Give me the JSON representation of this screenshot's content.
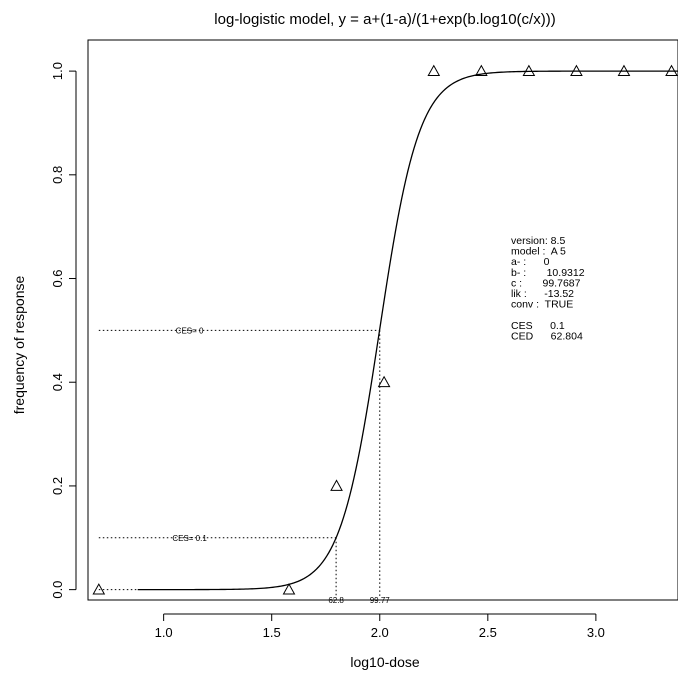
{
  "chart_data": {
    "type": "line",
    "title": "log-logistic model, y = a+(1-a)/(1+exp(b.log10(c/x)))",
    "xlabel": "log10-dose",
    "ylabel": "frequency of response",
    "xlim": [
      0.65,
      3.38
    ],
    "ylim": [
      -0.02,
      1.06
    ],
    "x_ticks": [
      1.0,
      1.5,
      2.0,
      2.5,
      3.0
    ],
    "x_tick_labels": [
      "1.0",
      "1.5",
      "2.0",
      "2.5",
      "3.0"
    ],
    "y_ticks": [
      0.0,
      0.2,
      0.4,
      0.6,
      0.8,
      1.0
    ],
    "y_tick_labels": [
      "0.0",
      "0.2",
      "0.4",
      "0.6",
      "0.8",
      "1.0"
    ],
    "grid": false,
    "model": {
      "a": 0,
      "b": 10.9312,
      "c": 99.7687
    },
    "observed": [
      {
        "x": 0.7,
        "y": 0.0
      },
      {
        "x": 1.58,
        "y": 0.0
      },
      {
        "x": 1.8,
        "y": 0.2
      },
      {
        "x": 2.02,
        "y": 0.4
      },
      {
        "x": 2.25,
        "y": 1.0
      },
      {
        "x": 2.47,
        "y": 1.0
      },
      {
        "x": 2.69,
        "y": 1.0
      },
      {
        "x": 2.91,
        "y": 1.0
      },
      {
        "x": 3.13,
        "y": 1.0
      },
      {
        "x": 3.35,
        "y": 1.0
      }
    ],
    "reference_lines": [
      {
        "y": 0.5,
        "x": 2.0,
        "label": "CES= 0",
        "x_label": "99.77"
      },
      {
        "y": 0.1,
        "x": 1.798,
        "label": "CES= 0.1",
        "x_label": "62.8"
      }
    ],
    "annotation_lines": [
      "version: 8.5",
      "model :  A 5",
      "a- :      0",
      "b- :       10.9312",
      "c :       99.7687",
      "lik :      -13.52",
      "conv :  TRUE",
      "",
      "CES      0.1",
      "CED      62.804"
    ]
  }
}
